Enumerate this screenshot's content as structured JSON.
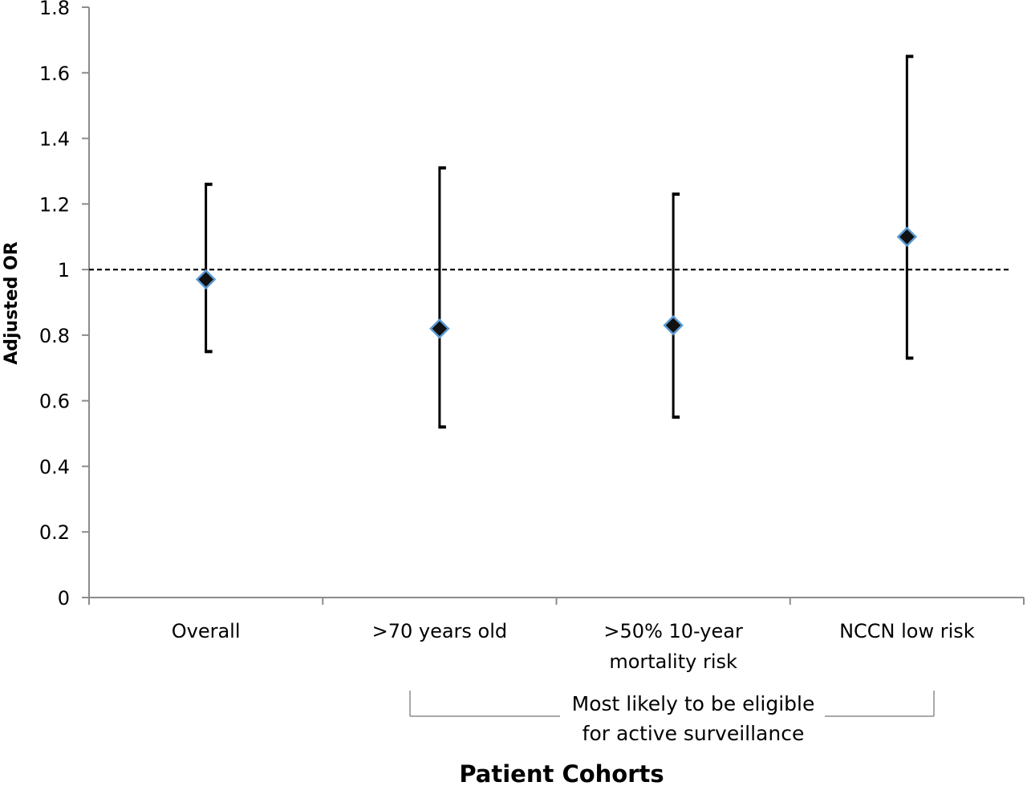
{
  "chart_data": {
    "type": "scatter",
    "categories": [
      [
        "Overall"
      ],
      [
        ">70 years old"
      ],
      [
        ">50% 10-year",
        "mortality risk"
      ],
      [
        "NCCN low risk"
      ]
    ],
    "values": [
      0.97,
      0.82,
      0.83,
      1.1
    ],
    "ci_lower": [
      0.75,
      0.52,
      0.55,
      0.73
    ],
    "ci_upper": [
      1.26,
      1.31,
      1.23,
      1.65
    ],
    "reference_line": 1.0,
    "ylim": [
      0,
      1.8
    ],
    "yticks": [
      "0",
      "0.2",
      "0.4",
      "0.6",
      "0.8",
      "1",
      "1.2",
      "1.4",
      "1.6",
      "1.8"
    ],
    "ylabel": "Adjusted OR",
    "xlabel": "Patient Cohorts",
    "bracket_note": [
      "Most likely to be eligible",
      "for active surveillance"
    ],
    "marker_fill": "#111111",
    "marker_edge": "#5b9bd5",
    "grid": false
  }
}
